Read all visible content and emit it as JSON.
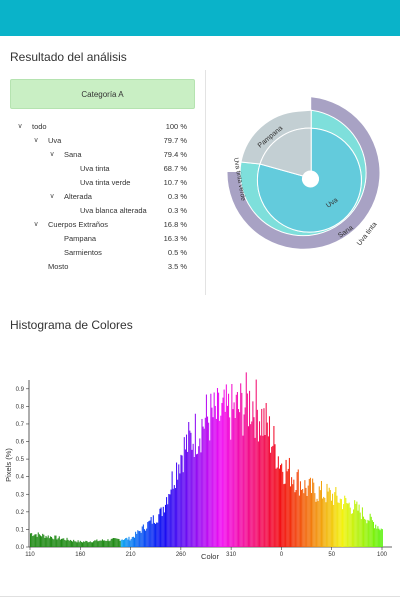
{
  "header": {},
  "analysis": {
    "title": "Resultado del análisis",
    "category_button": "Categoría A",
    "tree": [
      {
        "label": "todo",
        "value": "100 %",
        "level": 0,
        "expandable": true
      },
      {
        "label": "Uva",
        "value": "79.7 %",
        "level": 1,
        "expandable": true
      },
      {
        "label": "Sana",
        "value": "79.4 %",
        "level": 2,
        "expandable": true
      },
      {
        "label": "Uva tinta",
        "value": "68.7 %",
        "level": 3,
        "expandable": false
      },
      {
        "label": "Uva tinta verde",
        "value": "10.7 %",
        "level": 3,
        "expandable": false
      },
      {
        "label": "Alterada",
        "value": "0.3 %",
        "level": 2,
        "expandable": true
      },
      {
        "label": "Uva blanca alterada",
        "value": "0.3 %",
        "level": 3,
        "expandable": false
      },
      {
        "label": "Cuerpos Extraños",
        "value": "16.8 %",
        "level": 1,
        "expandable": true
      },
      {
        "label": "Pampana",
        "value": "16.3 %",
        "level": 2,
        "expandable": false
      },
      {
        "label": "Sarmientos",
        "value": "0.5 %",
        "level": 2,
        "expandable": false
      },
      {
        "label": "Mosto",
        "value": "3.5 %",
        "level": 1,
        "expandable": false
      }
    ],
    "sunburst_labels": {
      "uva": "Uva",
      "sana": "Sana",
      "uva_tinta": "Uva tinta",
      "uva_tinta_verde": "Uva tinta verde",
      "pampana": "Pampana"
    },
    "colors": {
      "uva": "#63cbdc",
      "sana": "#7edfdb",
      "outer": "#a8a2c4",
      "pampana": "#c3cfd3",
      "pampana_outer": "#b5c4c8"
    }
  },
  "histogram": {
    "title": "Histograma de Colores",
    "ylabel": "Pixels (%)",
    "xlabel": "Color",
    "yticks": [
      "0.0",
      "0.1",
      "0.2",
      "0.3",
      "0.4",
      "0.5",
      "0.6",
      "0.7",
      "0.8",
      "0.9"
    ],
    "xticks": [
      "110",
      "160",
      "210",
      "260",
      "310",
      "0",
      "50",
      "100"
    ]
  },
  "chart_data": {
    "type": "bar",
    "xlabel": "Color",
    "ylabel": "Pixels (%)",
    "ylim": [
      0,
      0.95
    ],
    "x_ticks": [
      "110",
      "160",
      "210",
      "260",
      "310",
      "0",
      "50",
      "100"
    ],
    "approximate_envelope": [
      {
        "x": "110",
        "y": 0.08
      },
      {
        "x": "160",
        "y": 0.03
      },
      {
        "x": "210",
        "y": 0.05
      },
      {
        "x": "240",
        "y": 0.2
      },
      {
        "x": "260",
        "y": 0.55
      },
      {
        "x": "285",
        "y": 0.75
      },
      {
        "x": "310",
        "y": 0.78
      },
      {
        "x": "330",
        "y": 0.85
      },
      {
        "x": "345",
        "y": 0.7
      },
      {
        "x": "0",
        "y": 0.48
      },
      {
        "x": "25",
        "y": 0.34
      },
      {
        "x": "50",
        "y": 0.3
      },
      {
        "x": "75",
        "y": 0.22
      },
      {
        "x": "100",
        "y": 0.1
      }
    ]
  }
}
